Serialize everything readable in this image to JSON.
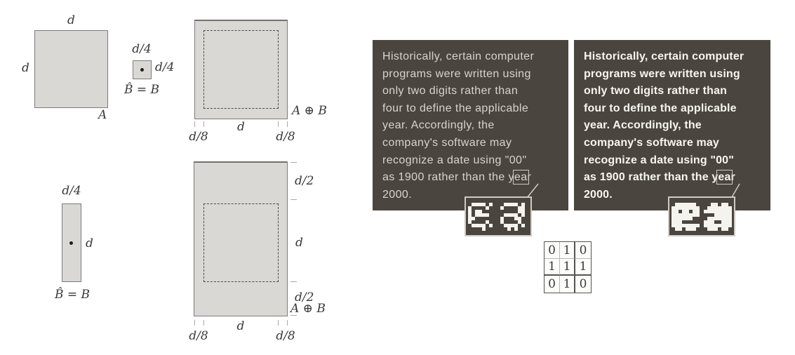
{
  "labels": {
    "d": "d",
    "d4": "d/4",
    "d8": "d/8",
    "d2": "d/2",
    "A": "A",
    "B_hat_eq": "B̂ = B",
    "A_dilate_B": "A ⊕ B"
  },
  "panel_text": {
    "lines": [
      "Historically, certain computer",
      "programs were written using",
      "only two digits rather than",
      "four to define the applicable",
      "year. Accordingly, the",
      "company's software may",
      "recognize a date using \"00\""
    ],
    "line8": {
      "prefix": "as 1900 rather than the y",
      "highlight": "ea",
      "suffix": "r"
    },
    "line9": "2000."
  },
  "matrix": {
    "rows": [
      [
        "0",
        "1",
        "0"
      ],
      [
        "1",
        "1",
        "1"
      ],
      [
        "0",
        "1",
        "0"
      ]
    ]
  },
  "insets": {
    "fill": "#f5f3ee",
    "broken": {
      "e": [
        ".####.#.",
        "#....#..",
        "#.##....",
        "#.####..",
        "##......",
        "#....#..",
        ".####.#.",
        "....#..."
      ],
      "a": [
        ".####.#.",
        "#....##.",
        ".....##.",
        ".####.#.",
        "#...##..",
        "#....#..",
        ".####.#.",
        "..#.#..."
      ]
    },
    "dilated": {
      "e": [
        ".######.",
        "########",
        "##.##.##",
        "########",
        "######..",
        "###.....",
        "########",
        ".##.###."
      ],
      "a": [
        "..##.##.",
        ".#######",
        "########",
        "...#####",
        ".#######",
        "###..###",
        "########",
        ".###.##."
      ]
    }
  },
  "colors": {
    "panel_bg": "#4a453e",
    "shape_fill": "#d9d8d4",
    "shape_border": "#7b7b77",
    "inset_border": "#cfccc4",
    "panel_text_normal": "#d8d5cd",
    "panel_text_bold": "#f8f6f1",
    "label_color": "#3a3a3a"
  }
}
